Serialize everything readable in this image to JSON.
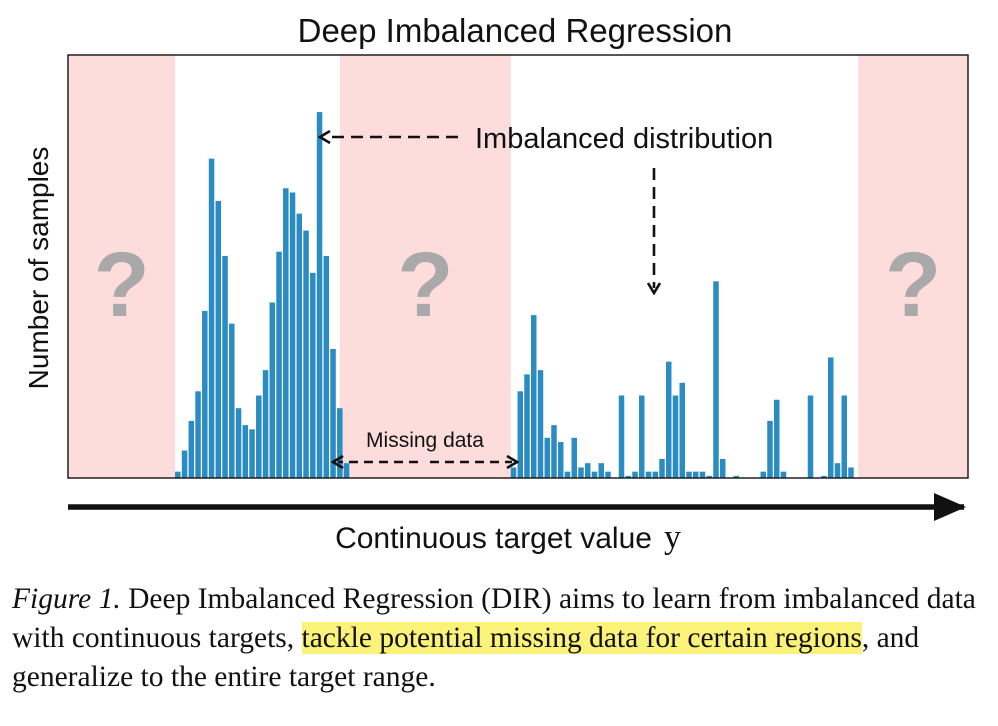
{
  "chart_data": {
    "type": "bar",
    "title": "Deep Imbalanced Regression",
    "xlabel": "Continuous target value",
    "xlabel_symbol": "y",
    "ylabel": "Number of samples",
    "x_range": [
      0,
      100
    ],
    "y_range": [
      0,
      100
    ],
    "grid": false,
    "legend": "none",
    "bar_color": "#2b8cc4",
    "region_color": "#fddcdc",
    "missing_regions": [
      {
        "x0": 0,
        "x1": 11.9
      },
      {
        "x0": 30.2,
        "x1": 49.2
      },
      {
        "x0": 87.8,
        "x1": 100
      }
    ],
    "bins": [
      {
        "x": 12.2,
        "value": 1.5
      },
      {
        "x": 12.95,
        "value": 6.5
      },
      {
        "x": 13.7,
        "value": 13.5
      },
      {
        "x": 14.45,
        "value": 20.5
      },
      {
        "x": 15.2,
        "value": 39.5
      },
      {
        "x": 15.95,
        "value": 75.5
      },
      {
        "x": 16.7,
        "value": 65.5
      },
      {
        "x": 17.45,
        "value": 52.5
      },
      {
        "x": 18.2,
        "value": 36.5
      },
      {
        "x": 18.95,
        "value": 16.5
      },
      {
        "x": 19.7,
        "value": 12.5
      },
      {
        "x": 20.45,
        "value": 11.5
      },
      {
        "x": 21.2,
        "value": 19.5
      },
      {
        "x": 21.95,
        "value": 25.5
      },
      {
        "x": 22.7,
        "value": 41.5
      },
      {
        "x": 23.45,
        "value": 53.5
      },
      {
        "x": 24.2,
        "value": 68.5
      },
      {
        "x": 24.95,
        "value": 67.5
      },
      {
        "x": 25.7,
        "value": 62.5
      },
      {
        "x": 26.45,
        "value": 58.5
      },
      {
        "x": 27.2,
        "value": 48.5
      },
      {
        "x": 27.95,
        "value": 86.5
      },
      {
        "x": 28.7,
        "value": 52.5
      },
      {
        "x": 29.45,
        "value": 30.5
      },
      {
        "x": 30.2,
        "value": 16.5
      },
      {
        "x": 30.95,
        "value": 3.5
      },
      {
        "x": 49.5,
        "value": 2.5
      },
      {
        "x": 50.25,
        "value": 20.5
      },
      {
        "x": 51.0,
        "value": 24.5
      },
      {
        "x": 51.75,
        "value": 38.5
      },
      {
        "x": 52.5,
        "value": 25.5
      },
      {
        "x": 53.25,
        "value": 9.5
      },
      {
        "x": 54.0,
        "value": 12.5
      },
      {
        "x": 54.75,
        "value": 8.5
      },
      {
        "x": 55.5,
        "value": 1.5
      },
      {
        "x": 56.25,
        "value": 9.5
      },
      {
        "x": 57.0,
        "value": 2.5
      },
      {
        "x": 57.75,
        "value": 3.5
      },
      {
        "x": 58.5,
        "value": 1.5
      },
      {
        "x": 59.25,
        "value": 3.5
      },
      {
        "x": 60.0,
        "value": 1.5
      },
      {
        "x": 61.5,
        "value": 19.5
      },
      {
        "x": 62.25,
        "value": 0.5
      },
      {
        "x": 63.0,
        "value": 1.5
      },
      {
        "x": 63.75,
        "value": 19.5
      },
      {
        "x": 64.5,
        "value": 1.5
      },
      {
        "x": 65.25,
        "value": 1.5
      },
      {
        "x": 66.0,
        "value": 4.5
      },
      {
        "x": 66.75,
        "value": 27.5
      },
      {
        "x": 67.5,
        "value": 19.5
      },
      {
        "x": 68.25,
        "value": 22.5
      },
      {
        "x": 69.0,
        "value": 1.5
      },
      {
        "x": 69.75,
        "value": 1.5
      },
      {
        "x": 70.5,
        "value": 1.5
      },
      {
        "x": 71.25,
        "value": 0.5
      },
      {
        "x": 72.0,
        "value": 46.5
      },
      {
        "x": 72.75,
        "value": 4.5
      },
      {
        "x": 74.25,
        "value": 0.5
      },
      {
        "x": 77.25,
        "value": 1.5
      },
      {
        "x": 78.0,
        "value": 13.5
      },
      {
        "x": 78.75,
        "value": 18.5
      },
      {
        "x": 79.5,
        "value": 1.5
      },
      {
        "x": 82.5,
        "value": 19.5
      },
      {
        "x": 84.0,
        "value": 0.5
      },
      {
        "x": 84.75,
        "value": 28.5
      },
      {
        "x": 85.5,
        "value": 3.5
      },
      {
        "x": 86.25,
        "value": 19.5
      },
      {
        "x": 87.0,
        "value": 2.5
      }
    ],
    "annotations": {
      "imbalanced": "Imbalanced distribution",
      "missing": "Missing data",
      "question_mark": "?"
    }
  },
  "caption": {
    "label": "Figure 1.",
    "text_before": " Deep Imbalanced Regression (DIR) aims to learn from imbalanced data with continuous targets, ",
    "highlight": "tackle potential missing data for certain regions",
    "text_after": ", and generalize to the entire target range.",
    "highlight_color": "#fbf27a"
  }
}
